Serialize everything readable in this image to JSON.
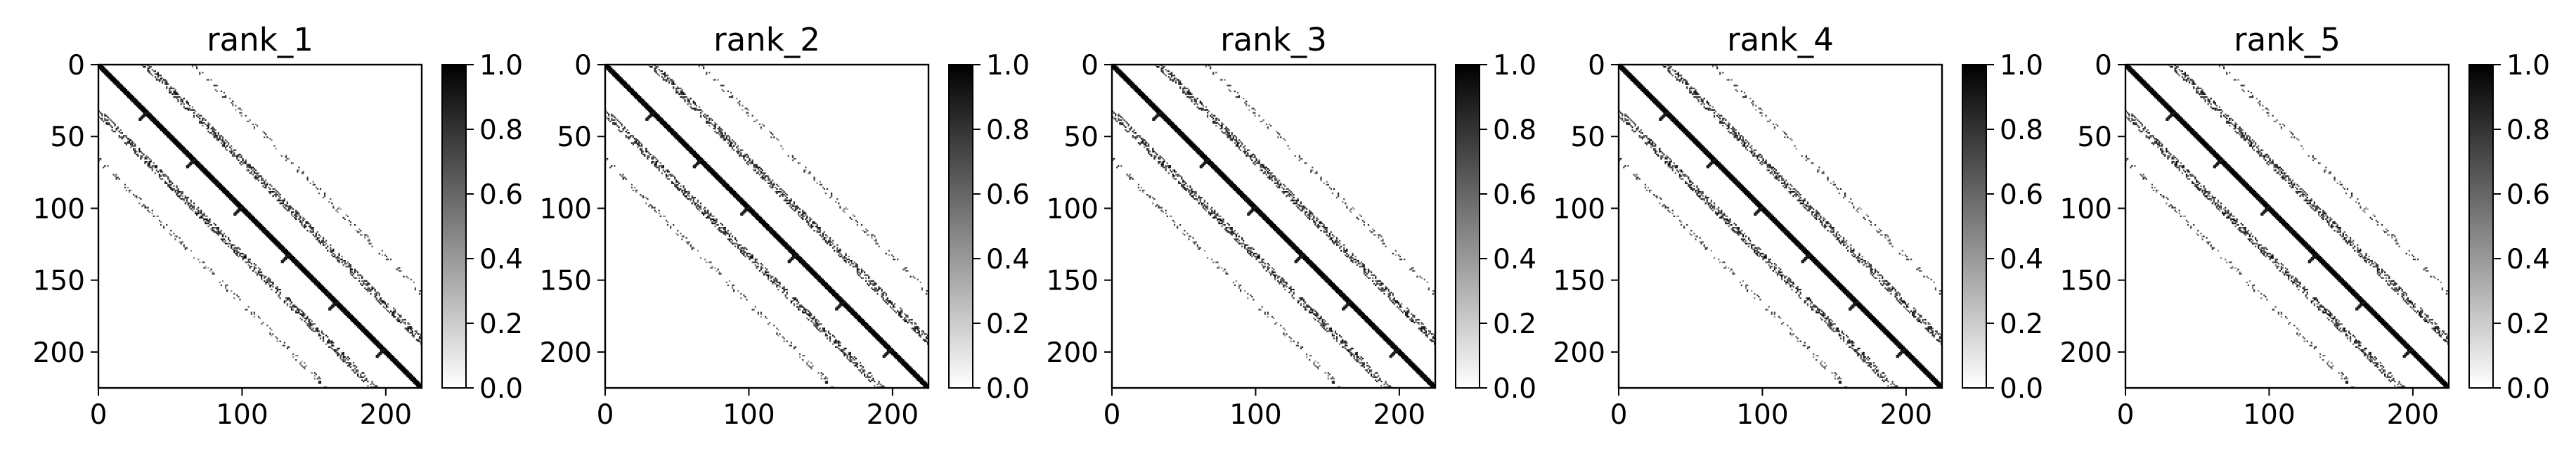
{
  "chart_data": [
    {
      "type": "heatmap",
      "title": "rank_1",
      "matrix_size": 225,
      "xlim": [
        0,
        225
      ],
      "ylim": [
        225,
        0
      ],
      "xticks": [
        0,
        100,
        200
      ],
      "yticks": [
        0,
        50,
        100,
        150,
        200
      ],
      "colorbar": {
        "range": [
          0.0,
          1.0
        ],
        "ticks": [
          "0.0",
          "0.2",
          "0.4",
          "0.6",
          "0.8",
          "1.0"
        ],
        "colormap": "Greys"
      },
      "pattern": "block-banded sparse matrix: dense main diagonal with dotted off-diagonal bands"
    },
    {
      "type": "heatmap",
      "title": "rank_2",
      "matrix_size": 225,
      "xlim": [
        0,
        225
      ],
      "ylim": [
        225,
        0
      ],
      "xticks": [
        0,
        100,
        200
      ],
      "yticks": [
        0,
        50,
        100,
        150,
        200
      ],
      "colorbar": {
        "range": [
          0.0,
          1.0
        ],
        "ticks": [
          "0.0",
          "0.2",
          "0.4",
          "0.6",
          "0.8",
          "1.0"
        ],
        "colormap": "Greys"
      },
      "pattern": "block-banded sparse matrix: dense main diagonal with dotted off-diagonal bands"
    },
    {
      "type": "heatmap",
      "title": "rank_3",
      "matrix_size": 225,
      "xlim": [
        0,
        225
      ],
      "ylim": [
        225,
        0
      ],
      "xticks": [
        0,
        100,
        200
      ],
      "yticks": [
        0,
        50,
        100,
        150,
        200
      ],
      "colorbar": {
        "range": [
          0.0,
          1.0
        ],
        "ticks": [
          "0.0",
          "0.2",
          "0.4",
          "0.6",
          "0.8",
          "1.0"
        ],
        "colormap": "Greys"
      },
      "pattern": "block-banded sparse matrix: dense main diagonal with dotted off-diagonal bands"
    },
    {
      "type": "heatmap",
      "title": "rank_4",
      "matrix_size": 225,
      "xlim": [
        0,
        225
      ],
      "ylim": [
        225,
        0
      ],
      "xticks": [
        0,
        100,
        200
      ],
      "yticks": [
        0,
        50,
        100,
        150,
        200
      ],
      "colorbar": {
        "range": [
          0.0,
          1.0
        ],
        "ticks": [
          "0.0",
          "0.2",
          "0.4",
          "0.6",
          "0.8",
          "1.0"
        ],
        "colormap": "Greys"
      },
      "pattern": "block-banded sparse matrix: dense main diagonal with dotted off-diagonal bands"
    },
    {
      "type": "heatmap",
      "title": "rank_5",
      "matrix_size": 225,
      "xlim": [
        0,
        225
      ],
      "ylim": [
        225,
        0
      ],
      "xticks": [
        0,
        100,
        200
      ],
      "yticks": [
        0,
        50,
        100,
        150,
        200
      ],
      "colorbar": {
        "range": [
          0.0,
          1.0
        ],
        "ticks": [
          "0.0",
          "0.2",
          "0.4",
          "0.6",
          "0.8",
          "1.0"
        ],
        "colormap": "Greys"
      },
      "pattern": "block-banded sparse matrix: dense main diagonal with dotted off-diagonal bands"
    }
  ]
}
